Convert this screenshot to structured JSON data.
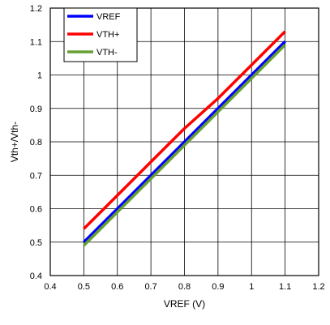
{
  "chart_data": {
    "type": "line",
    "xlabel": "VREF (V)",
    "ylabel": "Vth+/Vth-",
    "xlim": [
      0.4,
      1.2
    ],
    "ylim": [
      0.4,
      1.2
    ],
    "xticks": [
      "0.4",
      "0.5",
      "0.6",
      "0.7",
      "0.8",
      "0.9",
      "1",
      "1.1",
      "1.2"
    ],
    "yticks": [
      "0.4",
      "0.5",
      "0.6",
      "0.7",
      "0.8",
      "0.9",
      "1",
      "1.1",
      "1.2"
    ],
    "grid": true,
    "legend_position": "top-left",
    "series": [
      {
        "name": "VREF",
        "color": "#0000ff",
        "x": [
          0.5,
          1.1
        ],
        "y": [
          0.5,
          1.1
        ]
      },
      {
        "name": "VTH+",
        "color": "#ff0000",
        "x": [
          0.5,
          0.6,
          0.7,
          0.8,
          0.9,
          1.0,
          1.1
        ],
        "y": [
          0.54,
          0.64,
          0.74,
          0.84,
          0.93,
          1.03,
          1.13
        ]
      },
      {
        "name": "VTH-",
        "color": "#66a033",
        "x": [
          0.5,
          1.1
        ],
        "y": [
          0.49,
          1.09
        ]
      }
    ]
  }
}
